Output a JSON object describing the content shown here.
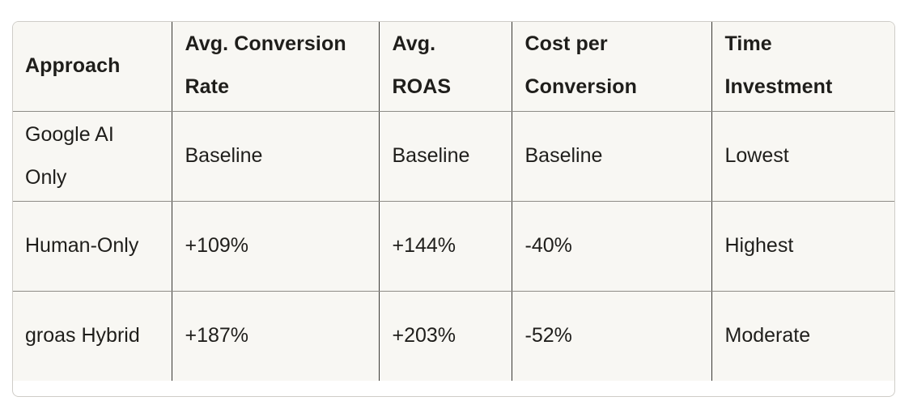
{
  "table": {
    "headers": [
      "Approach",
      "Avg. Conversion Rate",
      "Avg. ROAS",
      "Cost per Conversion",
      "Time Investment"
    ],
    "rows": [
      [
        "Google AI Only",
        "Baseline",
        "Baseline",
        "Baseline",
        "Lowest"
      ],
      [
        "Human-Only",
        "+109%",
        "+144%",
        "-40%",
        "Highest"
      ],
      [
        "groas Hybrid",
        "+187%",
        "+203%",
        "-52%",
        "Moderate"
      ]
    ]
  }
}
